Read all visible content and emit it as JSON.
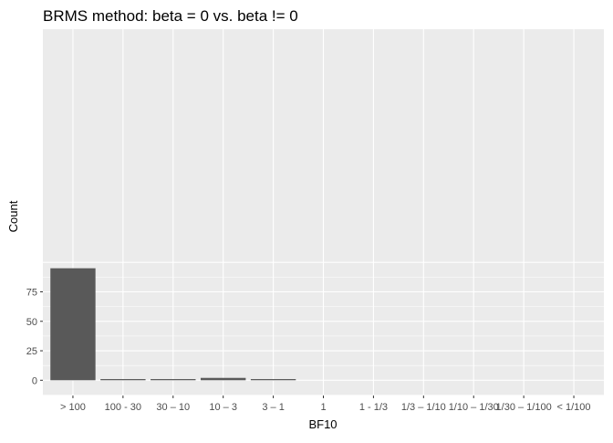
{
  "chart_data": {
    "type": "bar",
    "title": "BRMS method: beta = 0 vs. beta != 0",
    "xlabel": "BF10",
    "ylabel": "Count",
    "categories": [
      "> 100",
      "100 - 30",
      "30 – 10",
      "10 – 3",
      "3 – 1",
      "1",
      "1 - 1/3",
      "1/3 – 1/10",
      "1/10 – 1/30",
      "1/30 – 1/100",
      "< 1/100"
    ],
    "values": [
      95,
      1,
      1,
      2,
      1,
      0,
      0,
      0,
      0,
      0,
      0
    ],
    "y_ticks": [
      0,
      25,
      50,
      75
    ],
    "ylim": [
      0,
      100
    ],
    "grid": true,
    "colors": {
      "panel_background": "#ebebeb",
      "gridline": "#ffffff",
      "bar_fill": "#595959"
    }
  }
}
